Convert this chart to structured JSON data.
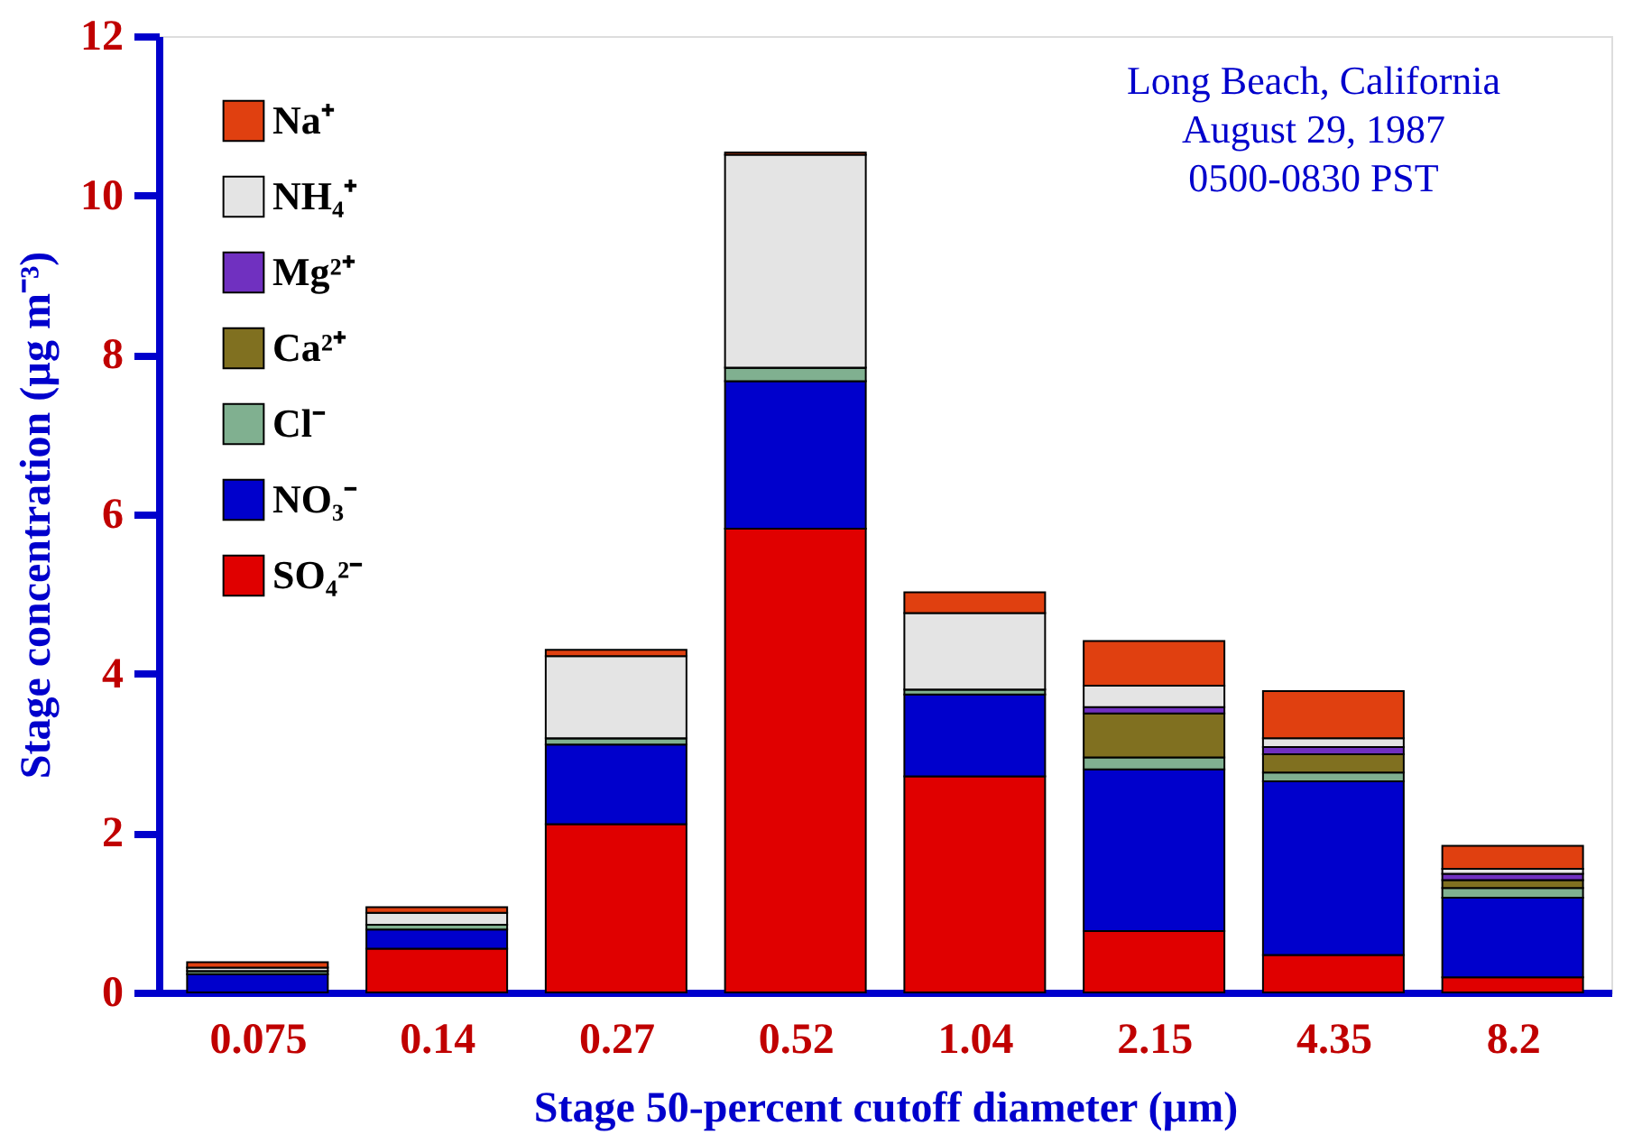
{
  "chart_data": {
    "type": "bar",
    "stacked": true,
    "xlabel": "Stage 50-percent cutoff diameter (µm)",
    "ylabel": "Stage concentration (µg m⁻³)",
    "categories": [
      "0.075",
      "0.14",
      "0.27",
      "0.52",
      "1.04",
      "2.15",
      "4.35",
      "8.2"
    ],
    "series": [
      {
        "name": "SO₄²⁻",
        "color": "#e00000",
        "values": [
          0,
          0.55,
          2.11,
          5.82,
          2.71,
          0.77,
          0.47,
          0.19
        ]
      },
      {
        "name": "NO₃⁻",
        "color": "#0000cc",
        "values": [
          0.23,
          0.24,
          1.0,
          1.85,
          1.03,
          2.03,
          2.18,
          1.0
        ]
      },
      {
        "name": "Cl⁻",
        "color": "#80b090",
        "values": [
          0.04,
          0.06,
          0.08,
          0.17,
          0.06,
          0.15,
          0.11,
          0.12
        ]
      },
      {
        "name": "Ca²⁺",
        "color": "#807020",
        "values": [
          0,
          0,
          0,
          0,
          0,
          0.55,
          0.23,
          0.1
        ]
      },
      {
        "name": "Mg²⁺",
        "color": "#7030c0",
        "values": [
          0,
          0,
          0,
          0,
          0,
          0.08,
          0.09,
          0.08
        ]
      },
      {
        "name": "NH₄⁺",
        "color": "#e4e4e4",
        "values": [
          0.04,
          0.15,
          1.03,
          2.67,
          0.96,
          0.27,
          0.11,
          0.06
        ]
      },
      {
        "name": "Na⁺",
        "color": "#e04010",
        "values": [
          0.07,
          0.07,
          0.08,
          0.03,
          0.26,
          0.56,
          0.59,
          0.29
        ]
      }
    ],
    "ylim": [
      0,
      12
    ],
    "yticks": [
      0,
      2,
      4,
      6,
      8,
      10,
      12
    ],
    "grid": false,
    "legend": "top left",
    "annotations": [
      "Long Beach, California",
      "August 29, 1987",
      "0500-0830 PST"
    ]
  }
}
